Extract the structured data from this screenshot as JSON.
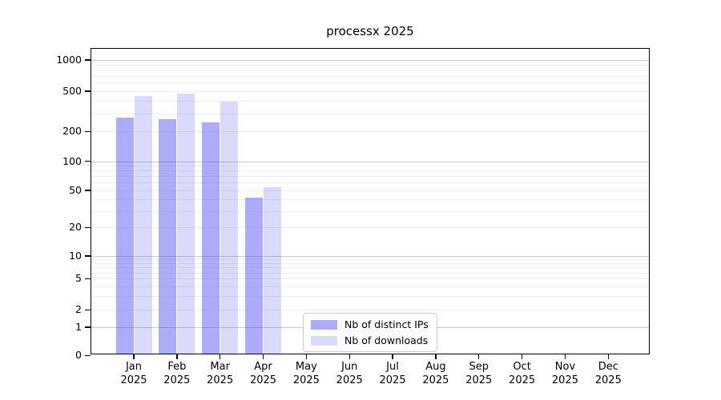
{
  "chart_data": {
    "type": "bar",
    "title": "processx 2025",
    "x_axis": {
      "months": [
        "Jan",
        "Feb",
        "Mar",
        "Apr",
        "May",
        "Jun",
        "Jul",
        "Aug",
        "Sep",
        "Oct",
        "Nov",
        "Dec"
      ],
      "year": "2025"
    },
    "y_axis": {
      "scale": "log-like (symlog)",
      "tick_labels": [
        "0",
        "1",
        "2",
        "5",
        "10",
        "20",
        "50",
        "100",
        "200",
        "500",
        "1000"
      ],
      "tick_values": [
        0,
        1,
        2,
        5,
        10,
        20,
        50,
        100,
        200,
        500,
        1000
      ],
      "ylim": [
        0,
        1300
      ],
      "grid": true
    },
    "series": [
      {
        "name": "Nb of distinct IPs",
        "color": "rgba(70,70,245,0.45)",
        "values": [
          275,
          262,
          247,
          42,
          0,
          0,
          0,
          0,
          0,
          0,
          0,
          0
        ]
      },
      {
        "name": "Nb of downloads",
        "color": "rgba(70,70,245,0.20)",
        "values": [
          445,
          470,
          390,
          54,
          0,
          0,
          0,
          0,
          0,
          0,
          0,
          0
        ]
      }
    ],
    "legend": {
      "entries": [
        "Nb of distinct IPs",
        "Nb of downloads"
      ],
      "position": "bottom-center"
    }
  }
}
